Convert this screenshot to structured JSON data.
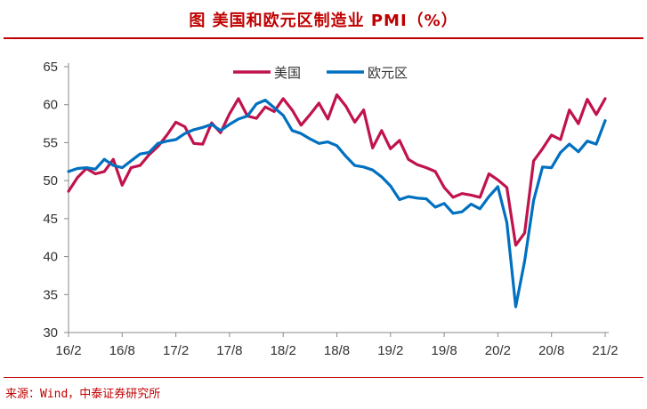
{
  "title": "图  美国和欧元区制造业 PMI（%）",
  "source": "来源：Wind，中泰证券研究所",
  "chart_data": {
    "type": "line",
    "title": "图  美国和欧元区制造业 PMI（%）",
    "xlabel": "",
    "ylabel": "",
    "ylim": [
      30,
      65
    ],
    "yticks": [
      30,
      35,
      40,
      45,
      50,
      55,
      60,
      65
    ],
    "xticks": [
      "16/2",
      "16/8",
      "17/2",
      "17/8",
      "18/2",
      "18/8",
      "19/2",
      "19/8",
      "20/2",
      "20/8",
      "21/2"
    ],
    "legend_position": "top-center",
    "x": [
      "16/2",
      "16/3",
      "16/4",
      "16/5",
      "16/6",
      "16/7",
      "16/8",
      "16/9",
      "16/10",
      "16/11",
      "16/12",
      "17/1",
      "17/2",
      "17/3",
      "17/4",
      "17/5",
      "17/6",
      "17/7",
      "17/8",
      "17/9",
      "17/10",
      "17/11",
      "17/12",
      "18/1",
      "18/2",
      "18/3",
      "18/4",
      "18/5",
      "18/6",
      "18/7",
      "18/8",
      "18/9",
      "18/10",
      "18/11",
      "18/12",
      "19/1",
      "19/2",
      "19/3",
      "19/4",
      "19/5",
      "19/6",
      "19/7",
      "19/8",
      "19/9",
      "19/10",
      "19/11",
      "19/12",
      "20/1",
      "20/2",
      "20/3",
      "20/4",
      "20/5",
      "20/6",
      "20/7",
      "20/8",
      "20/9",
      "20/10",
      "20/11",
      "20/12",
      "21/1",
      "21/2"
    ],
    "series": [
      {
        "name": "美国",
        "color": "#c0134c",
        "values": [
          48.6,
          50.4,
          51.6,
          50.9,
          51.2,
          52.8,
          49.4,
          51.7,
          52.0,
          53.4,
          54.5,
          56.0,
          57.7,
          57.1,
          54.9,
          54.8,
          57.6,
          56.3,
          58.8,
          60.8,
          58.5,
          58.2,
          59.7,
          59.1,
          60.8,
          59.3,
          57.3,
          58.7,
          60.2,
          58.1,
          61.3,
          59.8,
          57.7,
          59.3,
          54.3,
          56.6,
          54.2,
          55.3,
          52.8,
          52.1,
          51.7,
          51.2,
          49.1,
          47.8,
          48.3,
          48.1,
          47.8,
          50.9,
          50.1,
          49.1,
          41.5,
          43.1,
          52.6,
          54.2,
          56.0,
          55.4,
          59.3,
          57.5,
          60.7,
          58.7,
          60.8
        ]
      },
      {
        "name": "欧元区",
        "color": "#0070c0",
        "values": [
          51.2,
          51.6,
          51.7,
          51.5,
          52.8,
          52.0,
          51.7,
          52.6,
          53.5,
          53.7,
          54.9,
          55.2,
          55.4,
          56.2,
          56.7,
          57.0,
          57.4,
          56.6,
          57.4,
          58.1,
          58.5,
          60.1,
          60.6,
          59.6,
          58.6,
          56.6,
          56.2,
          55.5,
          54.9,
          55.1,
          54.6,
          53.2,
          52.0,
          51.8,
          51.4,
          50.5,
          49.3,
          47.5,
          47.9,
          47.7,
          47.6,
          46.5,
          47.0,
          45.7,
          45.9,
          46.9,
          46.3,
          47.9,
          49.2,
          44.5,
          33.4,
          39.4,
          47.4,
          51.8,
          51.7,
          53.7,
          54.8,
          53.8,
          55.2,
          54.8,
          57.9
        ]
      }
    ]
  }
}
